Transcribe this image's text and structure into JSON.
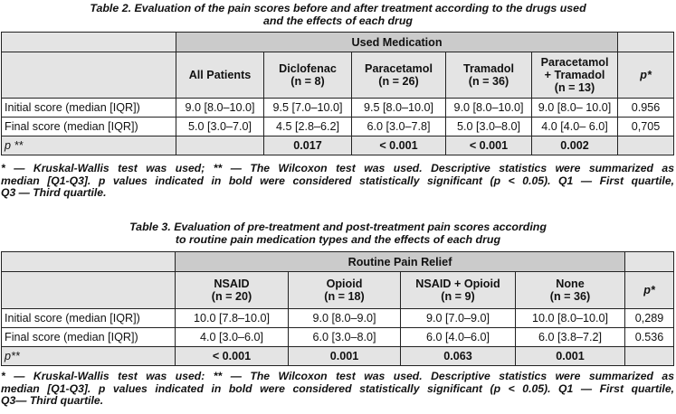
{
  "table2": {
    "caption_line1": "Table 2. Evaluation of the pain scores before and after treatment according to the drugs used",
    "caption_line2": "and the effects of each drug",
    "group_header": "Used Medication",
    "columns": [
      {
        "line1": "All Patients",
        "line2": ""
      },
      {
        "line1": "Diclofenac",
        "line2": "(n = 8)"
      },
      {
        "line1": "Paracetamol",
        "line2": "(n = 26)"
      },
      {
        "line1": "Tramadol",
        "line2": "(n = 36)"
      },
      {
        "line1": "Paracetamol",
        "line2": "+ Tramadol",
        "line3": "(n = 13)"
      }
    ],
    "p_header": "p*",
    "rows": [
      {
        "label": "Initial score (median [IQR])",
        "values": [
          "9.0 [8.0–10.0]",
          "9.5 [7.0–10.0]",
          "9.5 [8.0–10.0]",
          "9.0 [8.0–10.0]",
          "9.0 [8.0– 10.0]"
        ],
        "p": "0.956"
      },
      {
        "label": "Final score (median [IQR])",
        "values": [
          "5.0 [3.0–7.0]",
          "4.5 [2.8–6.2]",
          "6.0 [3.0–7.8]",
          "5.0 [3.0–8.0]",
          "4.0 [4.0– 6.0]"
        ],
        "p": "0,705"
      }
    ],
    "p_row": {
      "label": "p **",
      "values": [
        "",
        "0.017",
        "< 0.001",
        "< 0.001",
        "0.002"
      ],
      "p": ""
    },
    "note_lines": [
      "* — Kruskal-Wallis test was used; ** — The Wilcoxon test was used. Descriptive statistics were summarized as",
      "median [Q1-Q3]. p values indicated in bold were considered statistically significant (p < 0.05). Q1 — First quartile,",
      "Q3 — Third quartile."
    ]
  },
  "table3": {
    "caption_line1": "Table 3. Evaluation of pre-treatment and post-treatment pain scores according",
    "caption_line2": "to routine pain medication types and the effects of each drug",
    "group_header": "Routine Pain Relief",
    "columns": [
      {
        "line1": "NSAID",
        "line2": "(n = 20)"
      },
      {
        "line1": "Opioid",
        "line2": "(n = 18)"
      },
      {
        "line1": "NSAID + Opioid",
        "line2": "(n = 9)"
      },
      {
        "line1": "None",
        "line2": "(n = 36)"
      }
    ],
    "p_header": "p*",
    "rows": [
      {
        "label": "Initial score (median [IQR])",
        "values": [
          "10.0 [7.8–10.0]",
          "9.0 [8.0–9.0]",
          "9.0 [7.0–9.0]",
          "10.0 [8.0–10.0]"
        ],
        "p": "0,289"
      },
      {
        "label": "Final score (median [IQR])",
        "values": [
          "4.0 [3.0–6.0]",
          "6.0 [3.0–8.0]",
          "6.0 [4.0–6.0]",
          "6.0 [3.8–7.2]"
        ],
        "p": "0.536"
      }
    ],
    "p_row": {
      "label": "p**",
      "values": [
        "< 0.001",
        "0.001",
        "0.063",
        "0.001"
      ],
      "p": ""
    },
    "note_lines": [
      "* — Kruskal-Wallis test was used: ** — The Wilcoxon test was used. Descriptive statistics were summarized as",
      "median [Q1-Q3]. p values indicated in bold were considered statistically significant (p < 0.05). Q1 — First quartile,",
      "Q3— Third quartile."
    ]
  }
}
